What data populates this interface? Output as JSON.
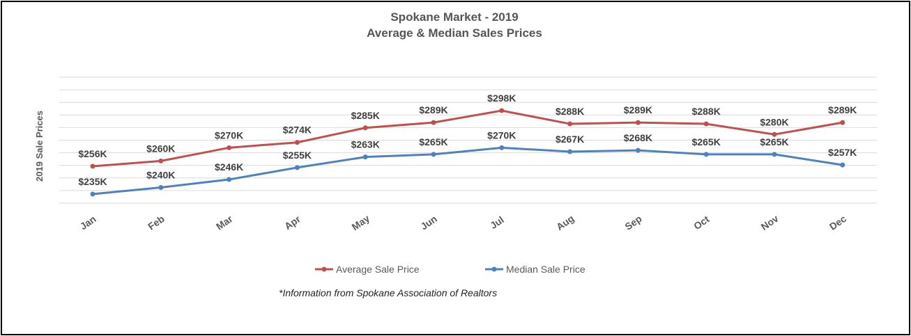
{
  "chart_data": {
    "type": "line",
    "title": "Spokane Market - 2019",
    "subtitle": "Average & Median Sales Prices",
    "ylabel": "2019 Sale Prices",
    "xlabel": "",
    "categories": [
      "Jan",
      "Feb",
      "Mar",
      "Apr",
      "May",
      "Jun",
      "Jul",
      "Aug",
      "Sep",
      "Oct",
      "Nov",
      "Dec"
    ],
    "series": [
      {
        "name": "Average Sale Price",
        "color": "#C0504D",
        "values": [
          256,
          260,
          270,
          274,
          285,
          289,
          298,
          288,
          289,
          288,
          280,
          289
        ],
        "labels": [
          "$256K",
          "$260K",
          "$270K",
          "$274K",
          "$285K",
          "$289K",
          "$298K",
          "$288K",
          "$289K",
          "$288K",
          "$280K",
          "$289K"
        ]
      },
      {
        "name": "Median Sale Price",
        "color": "#4F81BD",
        "values": [
          235,
          240,
          246,
          255,
          263,
          265,
          270,
          267,
          268,
          265,
          265,
          257
        ],
        "labels": [
          "$235K",
          "$240K",
          "$246K",
          "$255K",
          "$263K",
          "$265K",
          "$270K",
          "$267K",
          "$268K",
          "$265K",
          "$265K",
          "$257K"
        ]
      }
    ],
    "grid": true,
    "legend_position": "bottom",
    "footnote": "*Information from Spokane Association of Realtors"
  }
}
